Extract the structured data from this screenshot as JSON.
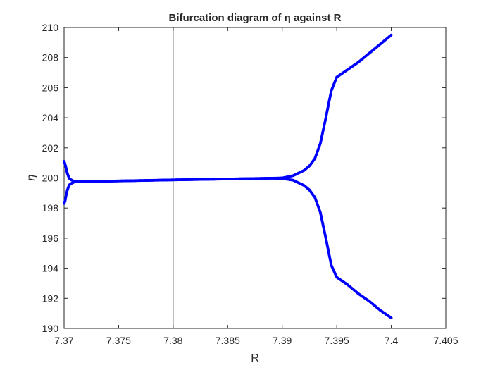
{
  "chart_data": {
    "type": "scatter",
    "title": "Bifurcation diagram of η against R",
    "xlabel": "R",
    "ylabel": "η",
    "xlim": [
      7.37,
      7.405
    ],
    "ylim": [
      190,
      210
    ],
    "xticks": [
      "7.37",
      "7.375",
      "7.38",
      "7.385",
      "7.39",
      "7.395",
      "7.4",
      "7.405"
    ],
    "yticks": [
      "190",
      "192",
      "194",
      "196",
      "198",
      "200",
      "202",
      "204",
      "206",
      "208",
      "210"
    ],
    "grid": false,
    "legend": "none",
    "marker_color": "#0000ff",
    "reference_line": {
      "axis": "x",
      "value": 7.38,
      "color": "#000000"
    },
    "series": [
      {
        "points": [
          [
            7.37,
            201.1
          ],
          [
            7.37,
            198.3
          ],
          [
            7.3701,
            200.9
          ],
          [
            7.3701,
            198.5
          ],
          [
            7.3702,
            200.6
          ],
          [
            7.3702,
            198.9
          ],
          [
            7.3703,
            200.3
          ],
          [
            7.3703,
            199.2
          ],
          [
            7.3704,
            200.1
          ],
          [
            7.3704,
            199.4
          ],
          [
            7.3705,
            199.95
          ],
          [
            7.3705,
            199.55
          ],
          [
            7.3707,
            199.85
          ],
          [
            7.3707,
            199.65
          ],
          [
            7.371,
            199.75
          ],
          [
            7.375,
            199.8
          ],
          [
            7.38,
            199.87
          ],
          [
            7.385,
            199.93
          ],
          [
            7.389,
            199.98
          ],
          [
            7.39,
            200.0
          ],
          [
            7.39,
            199.96
          ],
          [
            7.391,
            200.15
          ],
          [
            7.391,
            199.85
          ],
          [
            7.392,
            200.5
          ],
          [
            7.392,
            199.5
          ],
          [
            7.3925,
            200.8
          ],
          [
            7.3925,
            199.2
          ],
          [
            7.393,
            201.3
          ],
          [
            7.393,
            198.7
          ],
          [
            7.3935,
            202.3
          ],
          [
            7.3935,
            197.7
          ],
          [
            7.394,
            204.0
          ],
          [
            7.394,
            196.0
          ],
          [
            7.3945,
            205.8
          ],
          [
            7.3945,
            194.2
          ],
          [
            7.395,
            206.7
          ],
          [
            7.395,
            193.4
          ],
          [
            7.396,
            207.2
          ],
          [
            7.396,
            192.9
          ],
          [
            7.397,
            207.7
          ],
          [
            7.397,
            192.3
          ],
          [
            7.398,
            208.3
          ],
          [
            7.398,
            191.8
          ],
          [
            7.399,
            208.9
          ],
          [
            7.399,
            191.2
          ],
          [
            7.4,
            209.5
          ],
          [
            7.4,
            190.7
          ]
        ]
      }
    ]
  }
}
